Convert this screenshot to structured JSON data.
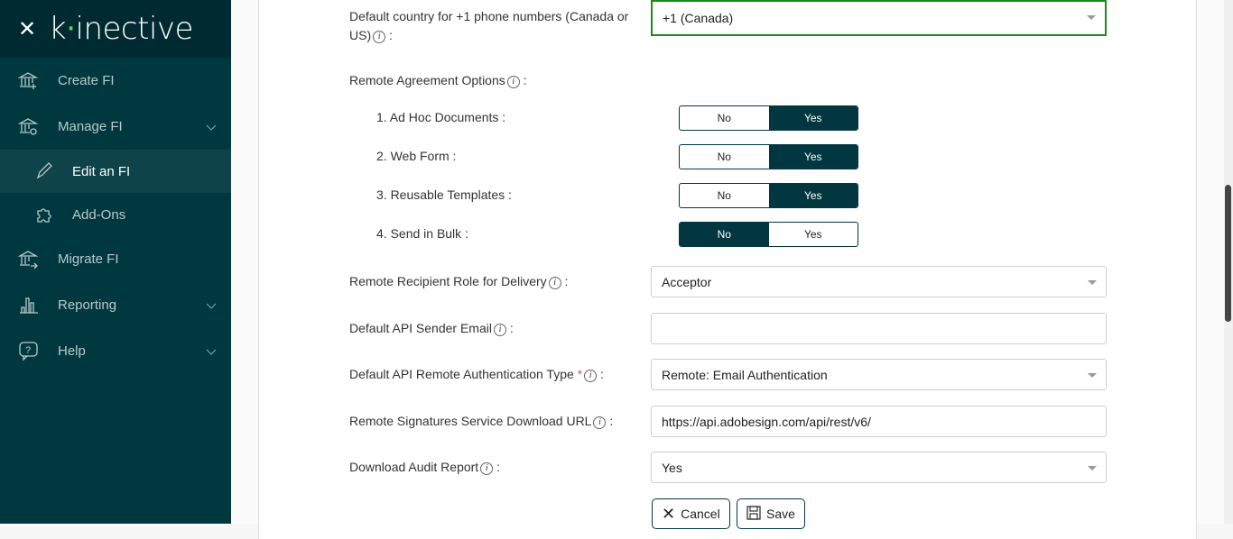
{
  "sidebar": {
    "brand": "kinective",
    "close_icon": "close-icon",
    "items": [
      {
        "label": "Create FI",
        "icon": "bank-plus-icon"
      },
      {
        "label": "Manage FI",
        "icon": "bank-gear-icon",
        "expandable": true
      },
      {
        "label": "Edit an FI",
        "icon": "pencil-icon",
        "active": true
      },
      {
        "label": "Add-Ons",
        "icon": "puzzle-icon"
      },
      {
        "label": "Migrate FI",
        "icon": "bank-arrow-icon"
      },
      {
        "label": "Reporting",
        "icon": "bar-chart-icon",
        "expandable": true
      },
      {
        "label": "Help",
        "icon": "help-bubble-icon",
        "expandable": true
      }
    ]
  },
  "form": {
    "country": {
      "label": "Default country for +1 phone numbers (Canada or US)",
      "value": "+1 (Canada)"
    },
    "remote_options": {
      "label": "Remote Agreement Options",
      "items": [
        {
          "label": "1. Ad Hoc Documents :",
          "value": "Yes"
        },
        {
          "label": "2. Web Form :",
          "value": "Yes"
        },
        {
          "label": "3. Reusable Templates :",
          "value": "Yes"
        },
        {
          "label": "4. Send in Bulk :",
          "value": "No"
        }
      ],
      "no": "No",
      "yes": "Yes"
    },
    "role": {
      "label": "Remote Recipient Role for Delivery",
      "value": "Acceptor"
    },
    "sender_email": {
      "label": "Default API Sender Email",
      "value": ""
    },
    "auth_type": {
      "label": "Default API Remote Authentication Type",
      "required": "*",
      "value": "Remote: Email Authentication"
    },
    "url": {
      "label": "Remote Signatures Service Download URL",
      "value": "https://api.adobesign.com/api/rest/v6/"
    },
    "audit": {
      "label": "Download Audit Report",
      "value": "Yes"
    },
    "cancel": "Cancel",
    "save": "Save",
    "colon": ":",
    "info": "i"
  },
  "colors": {
    "sidebar": "#003840",
    "accent": "#023640",
    "focus": "#1a8a1a"
  }
}
